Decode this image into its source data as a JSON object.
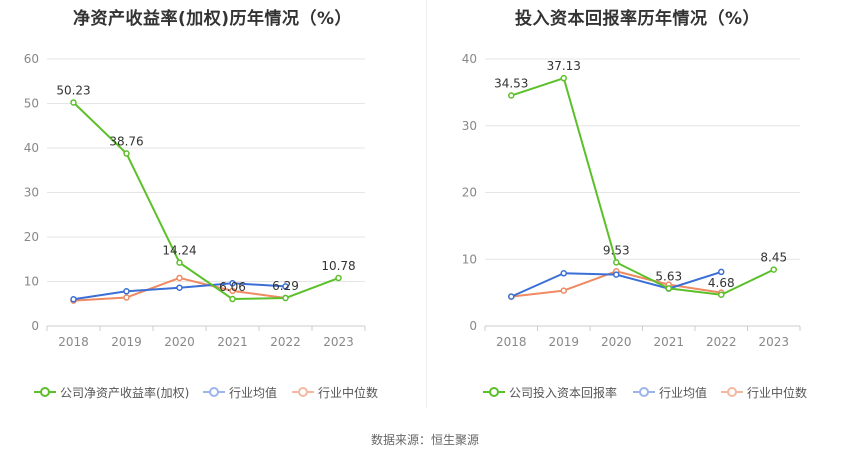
{
  "source": "数据来源：恒生聚源",
  "chart_data": [
    {
      "type": "line",
      "title": "净资产收益率(加权)历年情况（%）",
      "categories": [
        "2018",
        "2019",
        "2020",
        "2021",
        "2022",
        "2023"
      ],
      "ylim": [
        0,
        60
      ],
      "yticks": [
        0,
        10,
        20,
        30,
        40,
        50,
        60
      ],
      "grid": true,
      "legend_position": "bottom",
      "series": [
        {
          "name": "公司净资产收益率(加权)",
          "color": "#5cc02a",
          "values": [
            50.23,
            38.76,
            14.24,
            6.06,
            6.29,
            10.78
          ],
          "labels": [
            "50.23",
            "38.76",
            "14.24",
            "6.06",
            "6.29",
            "10.78"
          ]
        },
        {
          "name": "行业均值",
          "color": "#3b6fd6",
          "values": [
            6.0,
            7.8,
            8.6,
            9.6,
            8.9,
            null
          ]
        },
        {
          "name": "行业中位数",
          "color": "#ef8a62",
          "values": [
            5.7,
            6.4,
            10.8,
            7.9,
            6.3,
            null
          ]
        }
      ]
    },
    {
      "type": "line",
      "title": "投入资本回报率历年情况（%）",
      "categories": [
        "2018",
        "2019",
        "2020",
        "2021",
        "2022",
        "2023"
      ],
      "ylim": [
        0,
        40
      ],
      "yticks": [
        0,
        10,
        20,
        30,
        40
      ],
      "grid": true,
      "legend_position": "bottom",
      "series": [
        {
          "name": "公司投入资本回报率",
          "color": "#5cc02a",
          "values": [
            34.53,
            37.13,
            9.53,
            5.63,
            4.68,
            8.45
          ],
          "labels": [
            "34.53",
            "37.13",
            "9.53",
            "5.63",
            "4.68",
            "8.45"
          ]
        },
        {
          "name": "行业均值",
          "color": "#3b6fd6",
          "values": [
            4.4,
            7.9,
            7.7,
            5.6,
            8.1,
            null
          ]
        },
        {
          "name": "行业中位数",
          "color": "#ef8a62",
          "values": [
            4.4,
            5.3,
            8.2,
            6.2,
            5.0,
            null
          ]
        }
      ]
    }
  ]
}
